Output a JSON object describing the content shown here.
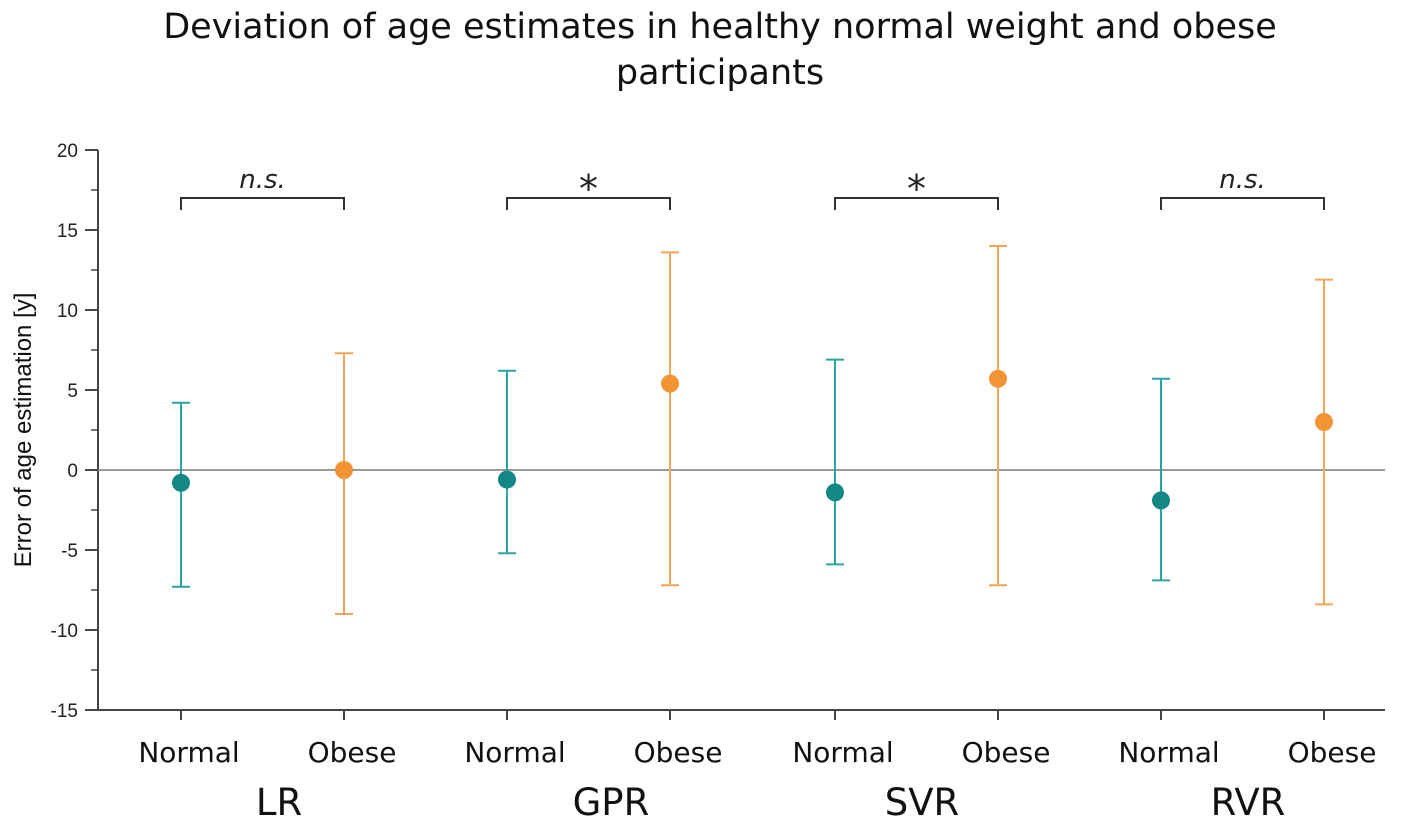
{
  "chart_data": {
    "type": "scatter",
    "title_lines": [
      "Deviation of age estimates in healthy normal weight and obese",
      "participants"
    ],
    "ylabel": "Error of age estimation [y]",
    "xlabel": "",
    "ylim": [
      -15,
      20
    ],
    "yticks": [
      -15,
      -10,
      -5,
      0,
      5,
      10,
      15,
      20
    ],
    "ytick_labels": [
      "-15",
      "-10",
      "-5",
      "0",
      "5",
      "10",
      "15",
      "20"
    ],
    "reference_line_y": 0,
    "category_labels": [
      "Normal",
      "Obese"
    ],
    "series": [
      {
        "name": "Normal",
        "color": "#138686",
        "bar_color": "#2aa6a0"
      },
      {
        "name": "Obese",
        "color": "#f39434",
        "bar_color": "#f5a55a"
      }
    ],
    "groups": [
      {
        "name": "LR",
        "points": [
          {
            "series": "Normal",
            "label": "Normal",
            "mean": -0.8,
            "lower": -7.3,
            "upper": 4.2
          },
          {
            "series": "Obese",
            "label": "Obese",
            "mean": 0.0,
            "lower": -9.0,
            "upper": 7.3
          }
        ],
        "significance": "n.s."
      },
      {
        "name": "GPR",
        "points": [
          {
            "series": "Normal",
            "label": "Normal",
            "mean": -0.6,
            "lower": -5.2,
            "upper": 6.2
          },
          {
            "series": "Obese",
            "label": "Obese",
            "mean": 5.4,
            "lower": -7.2,
            "upper": 13.6
          }
        ],
        "significance": "*"
      },
      {
        "name": "SVR",
        "points": [
          {
            "series": "Normal",
            "label": "Normal",
            "mean": -1.4,
            "lower": -5.9,
            "upper": 6.9
          },
          {
            "series": "Obese",
            "label": "Obese",
            "mean": 5.7,
            "lower": -7.2,
            "upper": 14.0
          }
        ],
        "significance": "*"
      },
      {
        "name": "RVR",
        "points": [
          {
            "series": "Normal",
            "label": "Normal",
            "mean": -1.9,
            "lower": -6.9,
            "upper": 5.7
          },
          {
            "series": "Obese",
            "label": "Obese",
            "mean": 3.0,
            "lower": -8.4,
            "upper": 11.9
          }
        ],
        "significance": "n.s."
      }
    ]
  }
}
